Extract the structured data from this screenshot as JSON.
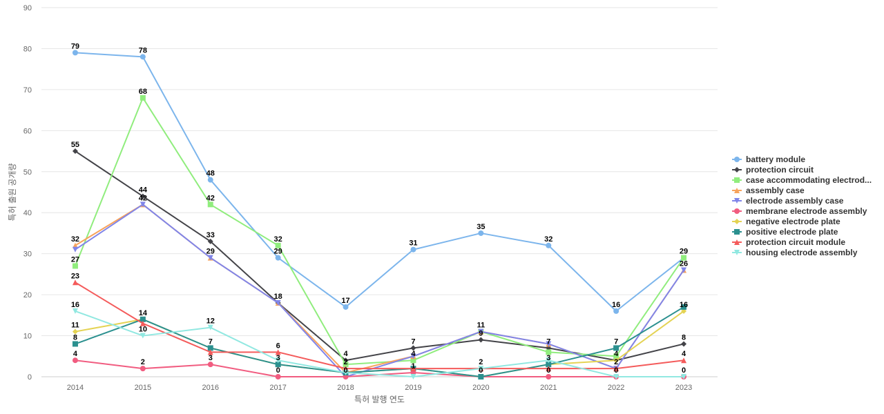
{
  "chart_data": {
    "type": "line",
    "title": "",
    "xlabel": "특허 발행 연도",
    "ylabel": "특허 출원 공개량",
    "ylim": [
      0,
      90
    ],
    "yticks": [
      0,
      10,
      20,
      30,
      40,
      50,
      60,
      70,
      80,
      90
    ],
    "grid": true,
    "legend_position": "right",
    "x": [
      "2014",
      "2015",
      "2016",
      "2017",
      "2018",
      "2019",
      "2020",
      "2021",
      "2022",
      "2023"
    ],
    "series": [
      {
        "name": "battery module",
        "color": "#7cb5ec",
        "marker": "circle",
        "values": [
          79,
          78,
          48,
          29,
          17,
          31,
          35,
          32,
          16,
          29
        ]
      },
      {
        "name": "protection circuit",
        "color": "#434348",
        "marker": "diamond",
        "values": [
          55,
          44,
          33,
          18,
          4,
          7,
          9,
          7,
          4,
          8
        ]
      },
      {
        "name": "case accommodating electrod...",
        "color": "#90ed7d",
        "marker": "square",
        "values": [
          27,
          68,
          42,
          32,
          3,
          4,
          11,
          6,
          5,
          29
        ]
      },
      {
        "name": "assembly case",
        "color": "#f7a35c",
        "marker": "triangle",
        "values": [
          32,
          42,
          29,
          18,
          1,
          5,
          11,
          8,
          2,
          26
        ]
      },
      {
        "name": "electrode assembly case",
        "color": "#8085e9",
        "marker": "triangle-down",
        "values": [
          31,
          42,
          29,
          18,
          0,
          5,
          11,
          8,
          2,
          26
        ]
      },
      {
        "name": "membrane electrode assembly",
        "color": "#f15c80",
        "marker": "circle",
        "values": [
          4,
          2,
          3,
          0,
          0,
          1,
          0,
          0,
          0,
          0
        ]
      },
      {
        "name": "negative electrode plate",
        "color": "#e4d354",
        "marker": "diamond",
        "values": [
          11,
          14,
          7,
          3,
          1,
          2,
          0,
          3,
          4,
          16
        ]
      },
      {
        "name": "positive electrode plate",
        "color": "#2b908f",
        "marker": "square",
        "values": [
          8,
          14,
          7,
          3,
          1,
          2,
          0,
          3,
          7,
          17
        ]
      },
      {
        "name": "protection circuit module",
        "color": "#f45b5b",
        "marker": "triangle",
        "values": [
          23,
          13,
          6,
          6,
          2,
          2,
          2,
          2,
          2,
          4
        ]
      },
      {
        "name": "housing electrode assembly",
        "color": "#91e8e1",
        "marker": "triangle-down",
        "values": [
          16,
          10,
          12,
          4,
          1,
          0,
          2,
          4,
          0,
          0
        ]
      }
    ],
    "data_labels": [
      {
        "x": "2014",
        "value": 79
      },
      {
        "x": "2014",
        "value": 55
      },
      {
        "x": "2014",
        "value": 32
      },
      {
        "x": "2014",
        "value": 27
      },
      {
        "x": "2014",
        "value": 23
      },
      {
        "x": "2014",
        "value": 16
      },
      {
        "x": "2014",
        "value": 11
      },
      {
        "x": "2014",
        "value": 8
      },
      {
        "x": "2014",
        "value": 4
      },
      {
        "x": "2015",
        "value": 78
      },
      {
        "x": "2015",
        "value": 68
      },
      {
        "x": "2015",
        "value": 44
      },
      {
        "x": "2015",
        "value": 42
      },
      {
        "x": "2015",
        "value": 14
      },
      {
        "x": "2015",
        "value": 10
      },
      {
        "x": "2015",
        "value": 2
      },
      {
        "x": "2016",
        "value": 48
      },
      {
        "x": "2016",
        "value": 42
      },
      {
        "x": "2016",
        "value": 33
      },
      {
        "x": "2016",
        "value": 29
      },
      {
        "x": "2016",
        "value": 12
      },
      {
        "x": "2016",
        "value": 7
      },
      {
        "x": "2016",
        "value": 3
      },
      {
        "x": "2017",
        "value": 32
      },
      {
        "x": "2017",
        "value": 29
      },
      {
        "x": "2017",
        "value": 18
      },
      {
        "x": "2017",
        "value": 6
      },
      {
        "x": "2017",
        "value": 3
      },
      {
        "x": "2017",
        "value": 0
      },
      {
        "x": "2018",
        "value": 17
      },
      {
        "x": "2018",
        "value": 4
      },
      {
        "x": "2018",
        "value": 2
      },
      {
        "x": "2018",
        "value": 0
      },
      {
        "x": "2019",
        "value": 31
      },
      {
        "x": "2019",
        "value": 7
      },
      {
        "x": "2019",
        "value": 4
      },
      {
        "x": "2019",
        "value": 1
      },
      {
        "x": "2020",
        "value": 35
      },
      {
        "x": "2020",
        "value": 11
      },
      {
        "x": "2020",
        "value": 9
      },
      {
        "x": "2020",
        "value": 2
      },
      {
        "x": "2020",
        "value": 0
      },
      {
        "x": "2021",
        "value": 32
      },
      {
        "x": "2021",
        "value": 7
      },
      {
        "x": "2021",
        "value": 3
      },
      {
        "x": "2021",
        "value": 0
      },
      {
        "x": "2022",
        "value": 16
      },
      {
        "x": "2022",
        "value": 7
      },
      {
        "x": "2022",
        "value": 4
      },
      {
        "x": "2022",
        "value": 2
      },
      {
        "x": "2022",
        "value": 0
      },
      {
        "x": "2023",
        "value": 29
      },
      {
        "x": "2023",
        "value": 26
      },
      {
        "x": "2023",
        "value": 16
      },
      {
        "x": "2023",
        "value": 8
      },
      {
        "x": "2023",
        "value": 4
      },
      {
        "x": "2023",
        "value": 0
      }
    ]
  }
}
